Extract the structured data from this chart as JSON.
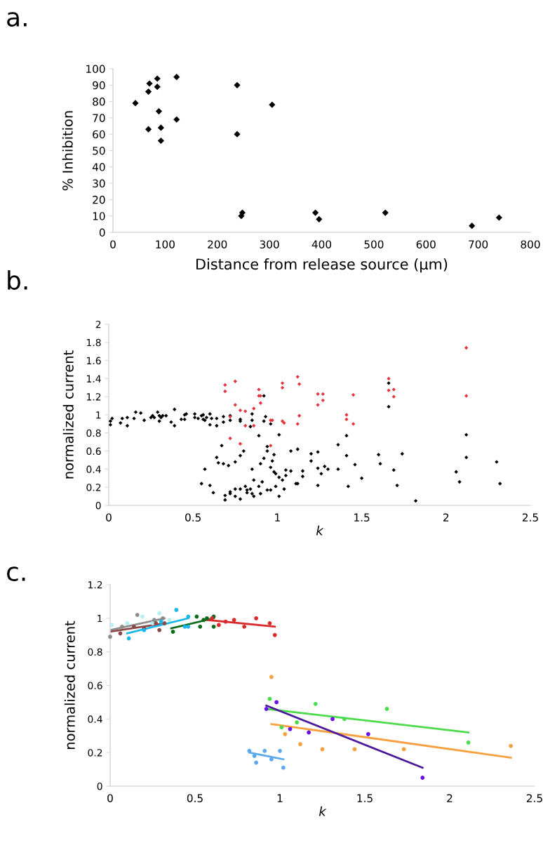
{
  "chart_data": [
    {
      "type": "scatter",
      "annotations": [
        "a."
      ],
      "xlabel": "Distance from release source (µm)",
      "ylabel": "% Inhibition",
      "marker": "diamond",
      "xlim": [
        0,
        800
      ],
      "xticks": [
        0,
        100,
        200,
        300,
        400,
        500,
        600,
        700,
        800
      ],
      "ylim": [
        0,
        100
      ],
      "yticks": [
        0,
        10,
        20,
        30,
        40,
        50,
        60,
        70,
        80,
        90,
        100
      ],
      "series": [
        {
          "color": "#000000",
          "x": [
            43,
            68,
            68,
            70,
            85,
            85,
            88,
            92,
            92,
            122,
            122,
            238,
            238,
            248,
            246,
            305,
            388,
            395,
            522,
            688,
            740
          ],
          "values": [
            79,
            63,
            86,
            91,
            89,
            94,
            74,
            64,
            56,
            95,
            69,
            90,
            60,
            12,
            10,
            78,
            12,
            8,
            12,
            4,
            9
          ]
        }
      ]
    },
    {
      "type": "scatter",
      "annotations": [
        "b."
      ],
      "xlabel": "k",
      "ylabel": "normalized current",
      "marker": "diamond",
      "xlim": [
        0,
        2.5
      ],
      "xticks": [
        0,
        0.5,
        1,
        1.5,
        2,
        2.5
      ],
      "ylim": [
        0,
        2
      ],
      "yticks": [
        0,
        0.2,
        0.4,
        0.6,
        0.8,
        1,
        1.2,
        1.4,
        1.6,
        1.8,
        2
      ],
      "series": [
        {
          "color": "#000000",
          "x": [
            0.01,
            0.01,
            0.02,
            0.07,
            0.08,
            0.11,
            0.11,
            0.15,
            0.16,
            0.19,
            0.21,
            0.25,
            0.26,
            0.27,
            0.29,
            0.3,
            0.3,
            0.31,
            0.32,
            0.34,
            0.37,
            0.39,
            0.39,
            0.43,
            0.45,
            0.45,
            0.46,
            0.51,
            0.51,
            0.53,
            0.55,
            0.56,
            0.56,
            0.57,
            0.58,
            0.6,
            0.6,
            0.61,
            0.64,
            0.64,
            0.68,
            0.68,
            0.72,
            0.72,
            0.78,
            0.78,
            0.85,
            0.85,
            0.84,
            0.92,
            0.92,
            0.93,
            0.96,
            0.55,
            0.57,
            0.6,
            0.62,
            0.64,
            0.65,
            0.67,
            0.68,
            0.71,
            0.72,
            0.69,
            0.69,
            0.72,
            0.75,
            0.75,
            0.75,
            0.78,
            0.78,
            0.78,
            0.8,
            0.81,
            0.82,
            0.82,
            0.84,
            0.85,
            0.85,
            0.86,
            0.86,
            0.89,
            0.89,
            0.9,
            0.9,
            0.91,
            0.94,
            0.94,
            0.92,
            0.94,
            0.96,
            0.96,
            0.97,
            0.98,
            0.98,
            0.99,
            0.99,
            1.01,
            1.01,
            1.01,
            1.03,
            1.04,
            1.05,
            1.05,
            1.08,
            1.08,
            1.11,
            1.12,
            1.12,
            1.15,
            1.15,
            1.2,
            1.2,
            1.24,
            1.24,
            1.26,
            1.28,
            1.3,
            1.24,
            1.36,
            1.36,
            1.41,
            1.41,
            1.46,
            1.42,
            1.5,
            1.6,
            1.61,
            1.66,
            1.66,
            1.69,
            1.71,
            1.74,
            1.82,
            2.06,
            2.08,
            2.12,
            2.12,
            2.3,
            2.32
          ],
          "values": [
            0.93,
            0.89,
            0.96,
            0.91,
            0.96,
            0.97,
            0.88,
            0.96,
            1.03,
            1.02,
            0.94,
            0.97,
            0.99,
            0.97,
            1.03,
            0.93,
            0.99,
            0.97,
            0.99,
            0.99,
            0.92,
            0.88,
            1.06,
            0.95,
            1.0,
            0.95,
            1.01,
            1.01,
            0.97,
            0.96,
            0.99,
            0.95,
            1.0,
            0.94,
            0.97,
            1.01,
            0.89,
            0.96,
            0.96,
            0.88,
            0.98,
            0.92,
            0.99,
            0.94,
            0.95,
            0.93,
            1.01,
            0.94,
            0.87,
            1.21,
            0.93,
            0.98,
            0.9,
            0.24,
            0.4,
            0.22,
            0.14,
            0.53,
            0.47,
            0.66,
            0.46,
            0.44,
            0.15,
            0.11,
            0.06,
            0.13,
            0.18,
            0.1,
            0.48,
            0.18,
            0.07,
            0.55,
            0.6,
            0.21,
            0.17,
            0.14,
            0.18,
            0.4,
            0.13,
            0.28,
            0.1,
            0.77,
            0.21,
            0.46,
            0.13,
            0.26,
            0.6,
            0.65,
            0.52,
            0.17,
            0.17,
            0.42,
            0.49,
            0.37,
            0.56,
            0.21,
            0.35,
            0.78,
            0.1,
            0.31,
            0.28,
            0.18,
            0.33,
            0.39,
            0.6,
            0.38,
            0.24,
            0.24,
            0.62,
            0.38,
            0.32,
            0.57,
            0.49,
            0.59,
            0.41,
            0.35,
            0.43,
            0.4,
            0.22,
            0.67,
            0.4,
            0.77,
            0.55,
            0.45,
            0.21,
            0.3,
            0.56,
            0.46,
            1.35,
            1.09,
            0.39,
            0.22,
            0.57,
            0.05,
            0.37,
            0.26,
            0.78,
            0.53,
            0.48,
            0.24
          ]
        },
        {
          "color": "#e4363c",
          "x": [
            0.69,
            0.69,
            0.75,
            0.75,
            0.72,
            0.72,
            0.78,
            0.78,
            0.81,
            0.81,
            0.86,
            0.86,
            0.89,
            0.89,
            0.9,
            0.9,
            0.96,
            0.97,
            0.96,
            1.03,
            1.03,
            1.03,
            1.04,
            1.12,
            1.13,
            1.13,
            1.12,
            1.24,
            1.27,
            1.27,
            1.24,
            1.45,
            1.41,
            1.41,
            1.45,
            1.66,
            1.66,
            1.69,
            1.69,
            2.12,
            2.12
          ],
          "values": [
            1.33,
            1.26,
            1.37,
            1.11,
            0.98,
            0.74,
            1.05,
            0.68,
            1.04,
            0.88,
            1.07,
            0.88,
            1.28,
            1.21,
            1.21,
            1.13,
            0.94,
            0.94,
            0.66,
            1.35,
            1.3,
            0.93,
            0.91,
            1.42,
            1.34,
            0.99,
            0.9,
            1.23,
            1.23,
            1.16,
            1.11,
            1.22,
            1.0,
            0.95,
            0.9,
            1.4,
            1.27,
            1.28,
            1.2,
            1.74,
            1.21
          ]
        }
      ]
    },
    {
      "type": "scatter",
      "annotations": [
        "c."
      ],
      "xlabel": "k",
      "ylabel": "normalized current",
      "marker": "circle",
      "xlim": [
        0,
        2.5
      ],
      "xticks": [
        0,
        0.5,
        1,
        1.5,
        2,
        2.5
      ],
      "ylim": [
        0,
        1.2
      ],
      "yticks": [
        0,
        0.2,
        0.4,
        0.6,
        0.8,
        1,
        1.2
      ],
      "series": [
        {
          "color": "#b5eef4",
          "x": [
            0.01,
            0.1,
            0.19,
            0.25,
            0.29,
            0.35
          ],
          "values": [
            0.96,
            0.97,
            1.01,
            0.97,
            1.03,
            0.99
          ]
        },
        {
          "color": "#8c8c8c",
          "x": [
            0.0,
            0.07,
            0.16,
            0.26,
            0.31
          ],
          "values": [
            0.89,
            0.95,
            1.02,
            0.99,
            1.0
          ]
        },
        {
          "type": "line",
          "marker": "none",
          "color": "#8c8c8c",
          "x": [
            0,
            0.32
          ],
          "values": [
            0.93,
            1.0
          ]
        },
        {
          "color": "#8b4a4a",
          "x": [
            0.06,
            0.14,
            0.2,
            0.27,
            0.29,
            0.32
          ],
          "values": [
            0.91,
            0.95,
            0.94,
            0.97,
            0.93,
            0.97
          ]
        },
        {
          "type": "line",
          "marker": "none",
          "color": "#8b4a4a",
          "x": [
            0,
            0.32
          ],
          "values": [
            0.92,
            0.97
          ]
        },
        {
          "color": "#1ab7ea",
          "x": [
            0.11,
            0.2,
            0.3,
            0.39,
            0.44,
            0.46,
            0.46
          ],
          "values": [
            0.88,
            0.93,
            0.98,
            1.05,
            0.95,
            0.95,
            1.01
          ]
        },
        {
          "type": "line",
          "marker": "none",
          "color": "#1ab7ea",
          "x": [
            0.1,
            0.46
          ],
          "values": [
            0.91,
            1.0
          ]
        },
        {
          "color": "#0a6b1a",
          "x": [
            0.37,
            0.51,
            0.53,
            0.55,
            0.57,
            0.61,
            0.61
          ],
          "values": [
            0.92,
            1.01,
            0.95,
            0.99,
            1.0,
            1.01,
            0.95
          ]
        },
        {
          "type": "line",
          "marker": "none",
          "color": "#0a6b1a",
          "x": [
            0.36,
            0.61
          ],
          "values": [
            0.94,
            1.0
          ]
        },
        {
          "color": "#d92b2b",
          "x": [
            0.6,
            0.64,
            0.68,
            0.73,
            0.79,
            0.86,
            0.94,
            0.97
          ],
          "values": [
            1.0,
            0.96,
            0.98,
            0.99,
            0.95,
            1.0,
            0.97,
            0.9
          ]
        },
        {
          "type": "line",
          "marker": "none",
          "color": "#d92b2b",
          "x": [
            0.57,
            0.97
          ],
          "values": [
            0.99,
            0.95
          ]
        },
        {
          "color": "#f8a040",
          "x": [
            0.95,
            1.03,
            1.12,
            1.25,
            1.44,
            1.73,
            2.36
          ],
          "values": [
            0.65,
            0.31,
            0.25,
            0.22,
            0.22,
            0.22,
            0.24
          ]
        },
        {
          "type": "line",
          "marker": "none",
          "color": "#f8a040",
          "x": [
            0.95,
            2.36
          ],
          "values": [
            0.37,
            0.17
          ]
        },
        {
          "color": "#4cdb4c",
          "x": [
            0.94,
            1.01,
            1.1,
            1.21,
            1.38,
            1.63,
            2.11
          ],
          "values": [
            0.52,
            0.35,
            0.38,
            0.49,
            0.4,
            0.46,
            0.26
          ]
        },
        {
          "type": "line",
          "marker": "none",
          "color": "#4cdb4c",
          "x": [
            0.92,
            2.11
          ],
          "values": [
            0.46,
            0.32
          ]
        },
        {
          "color": "#6a10e8",
          "x": [
            0.92,
            0.98,
            1.06,
            1.17,
            1.31,
            1.52,
            1.84
          ],
          "values": [
            0.46,
            0.5,
            0.34,
            0.32,
            0.4,
            0.31,
            0.05
          ]
        },
        {
          "type": "line",
          "marker": "none",
          "color": "#4a1a9a",
          "x": [
            0.92,
            1.84
          ],
          "values": [
            0.48,
            0.11
          ]
        },
        {
          "color": "#5aa9f0",
          "x": [
            0.82,
            0.85,
            0.86,
            0.91,
            0.95,
            1.0,
            1.02
          ],
          "values": [
            0.21,
            0.18,
            0.14,
            0.21,
            0.16,
            0.21,
            0.11
          ]
        },
        {
          "type": "line",
          "marker": "none",
          "color": "#5aa9f0",
          "x": [
            0.82,
            1.02
          ],
          "values": [
            0.2,
            0.16
          ]
        }
      ]
    }
  ]
}
